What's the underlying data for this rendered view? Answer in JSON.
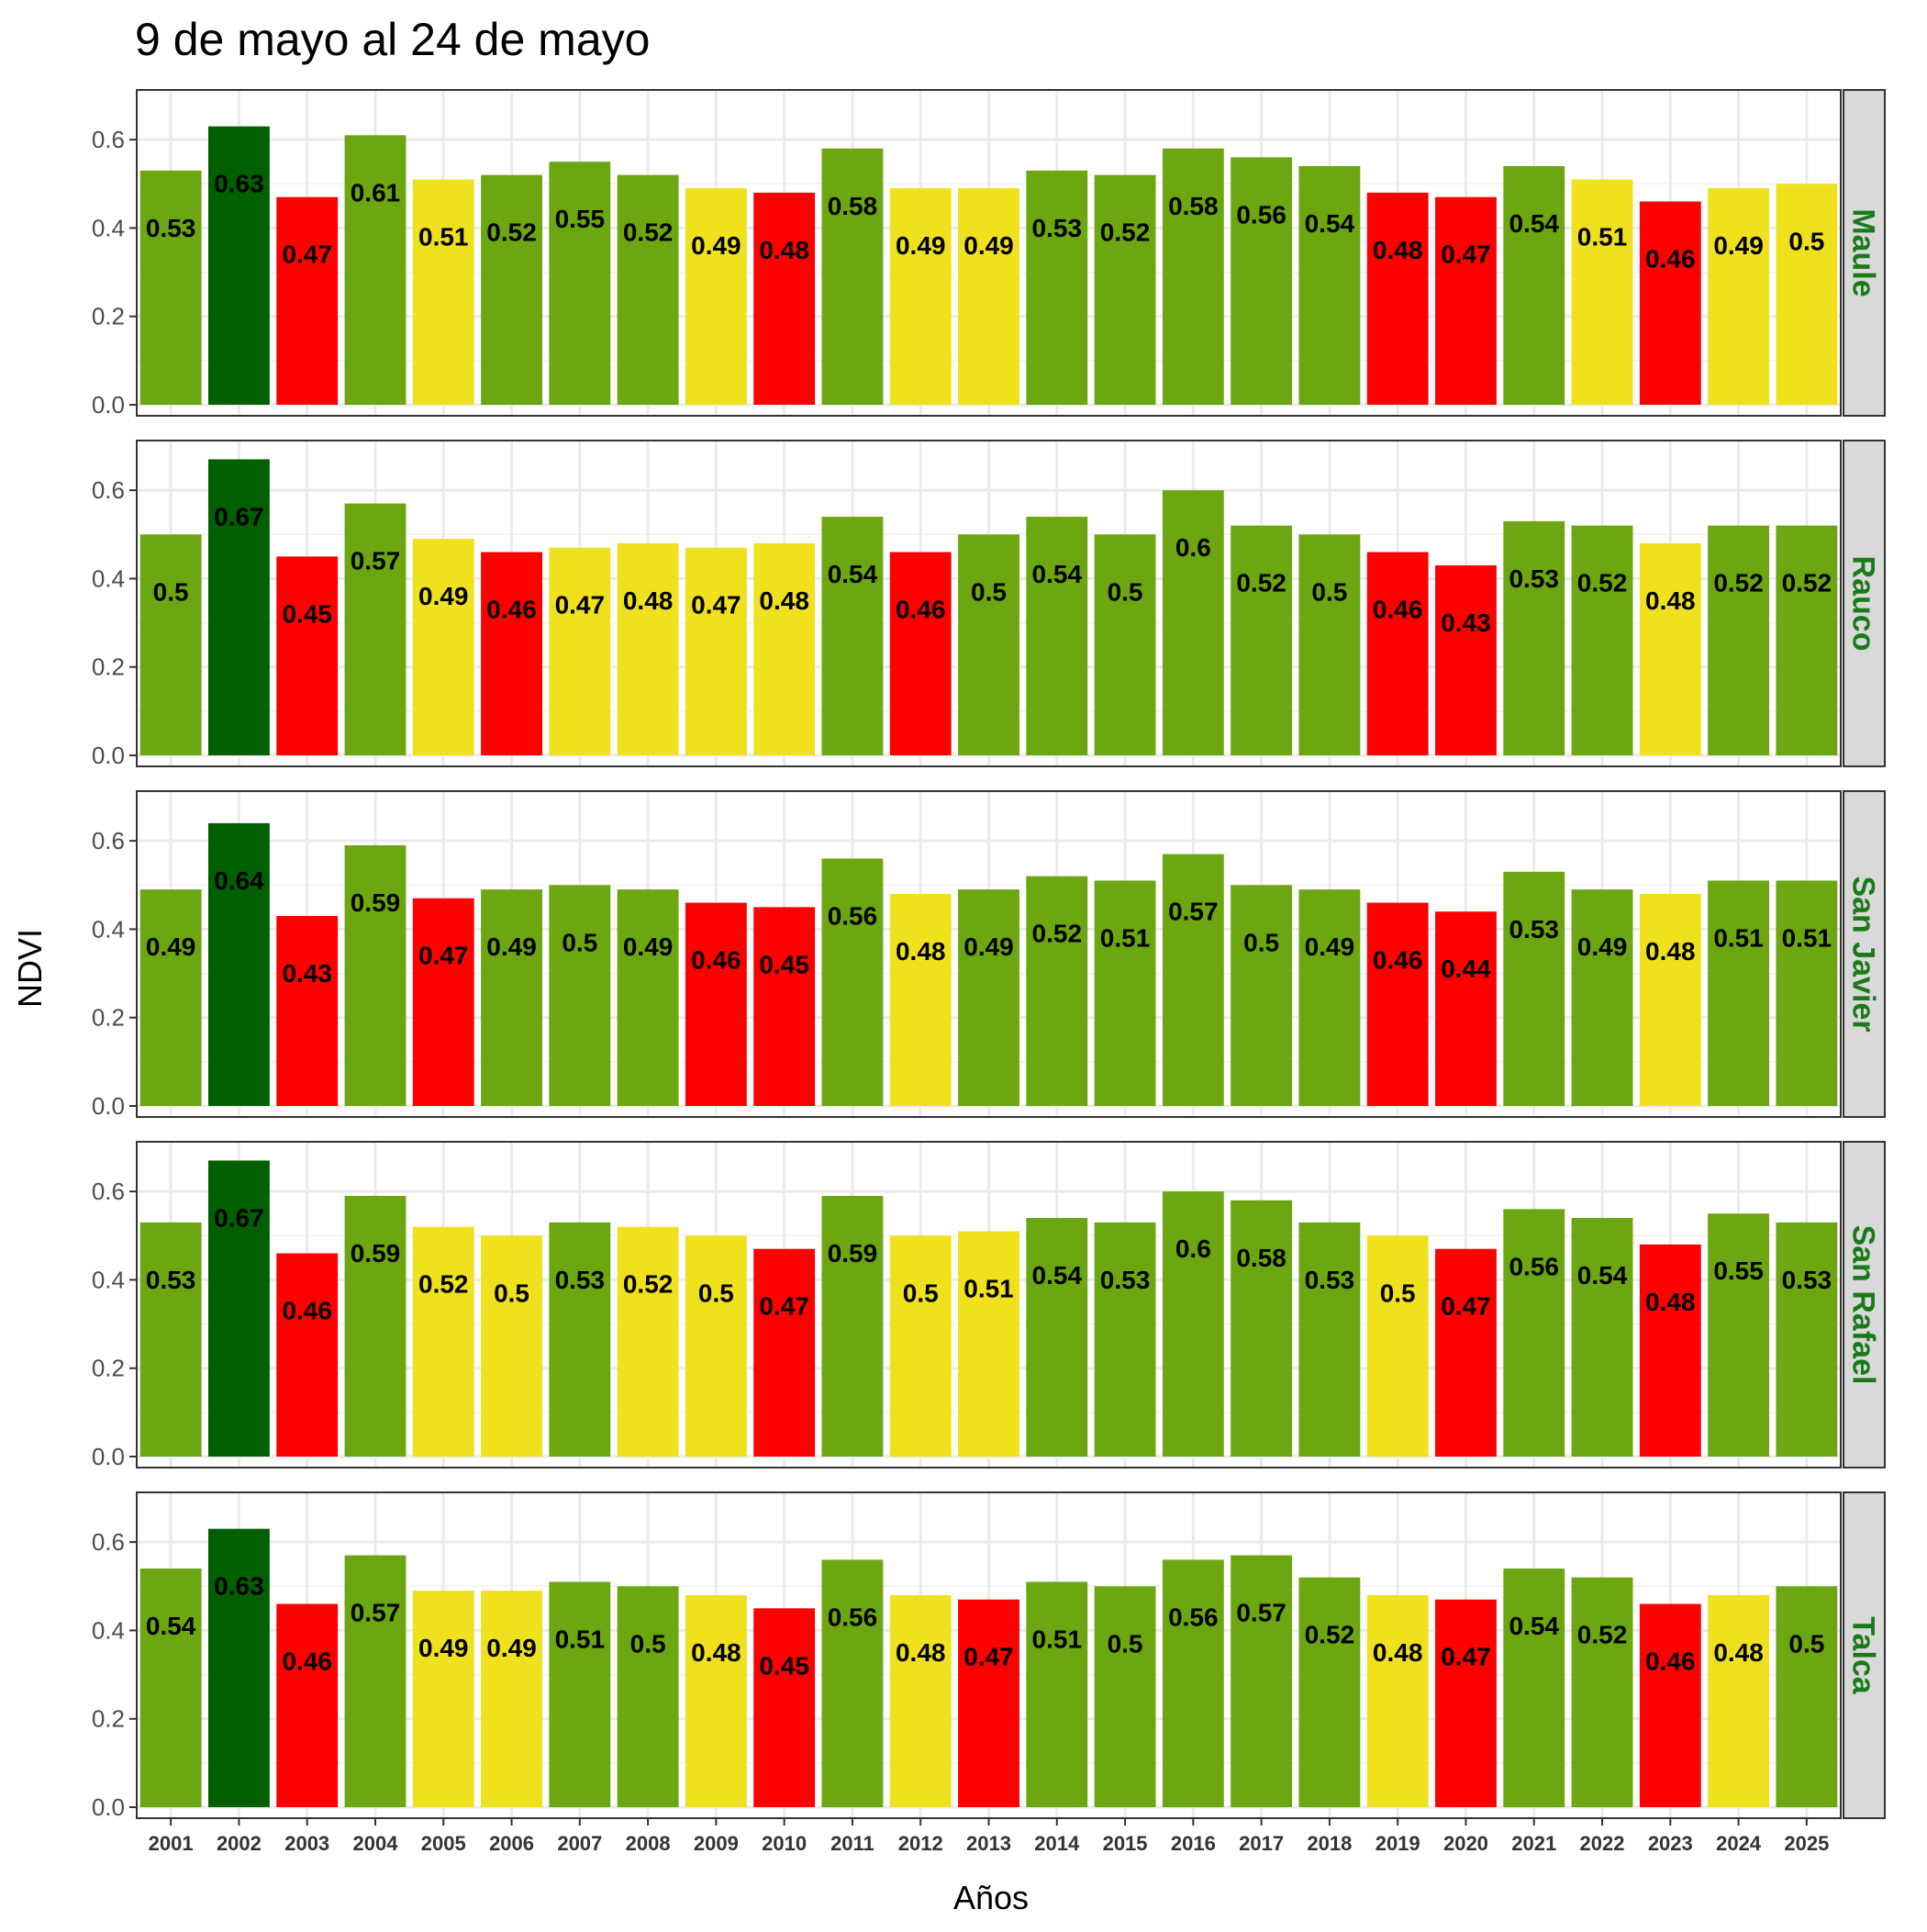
{
  "chart_data": {
    "type": "bar",
    "title": "9 de mayo al 24 de mayo",
    "xlabel": "Años",
    "ylabel": "NDVI",
    "ylim": [
      0,
      0.7
    ],
    "yticks": [
      "0.0",
      "0.2",
      "0.4",
      "0.6"
    ],
    "grid": true,
    "categories": [
      "2001",
      "2002",
      "2003",
      "2004",
      "2005",
      "2006",
      "2007",
      "2008",
      "2009",
      "2010",
      "2011",
      "2012",
      "2013",
      "2014",
      "2015",
      "2016",
      "2017",
      "2018",
      "2019",
      "2020",
      "2021",
      "2022",
      "2023",
      "2024",
      "2025"
    ],
    "colors": {
      "G": "#6ca611",
      "D": "#006000",
      "R": "#ff0000",
      "Y": "#f0e11e"
    },
    "strip_text_color": "#1a7a1a",
    "panels": [
      {
        "name": "Maule",
        "values": [
          0.53,
          0.63,
          0.47,
          0.61,
          0.51,
          0.52,
          0.55,
          0.52,
          0.49,
          0.48,
          0.58,
          0.49,
          0.49,
          0.53,
          0.52,
          0.58,
          0.56,
          0.54,
          0.48,
          0.47,
          0.54,
          0.51,
          0.46,
          0.49,
          0.5
        ],
        "labels": [
          "0.53",
          "0.63",
          "0.47",
          "0.61",
          "0.51",
          "0.52",
          "0.55",
          "0.52",
          "0.49",
          "0.48",
          "0.58",
          "0.49",
          "0.49",
          "0.53",
          "0.52",
          "0.58",
          "0.56",
          "0.54",
          "0.48",
          "0.47",
          "0.54",
          "0.51",
          "0.46",
          "0.49",
          "0.5"
        ],
        "classes": [
          "G",
          "D",
          "R",
          "G",
          "Y",
          "G",
          "G",
          "G",
          "Y",
          "R",
          "G",
          "Y",
          "Y",
          "G",
          "G",
          "G",
          "G",
          "G",
          "R",
          "R",
          "G",
          "Y",
          "R",
          "Y",
          "Y"
        ]
      },
      {
        "name": "Rauco",
        "values": [
          0.5,
          0.67,
          0.45,
          0.57,
          0.49,
          0.46,
          0.47,
          0.48,
          0.47,
          0.48,
          0.54,
          0.46,
          0.5,
          0.54,
          0.5,
          0.6,
          0.52,
          0.5,
          0.46,
          0.43,
          0.53,
          0.52,
          0.48,
          0.52,
          0.52
        ],
        "labels": [
          "0.5",
          "0.67",
          "0.45",
          "0.57",
          "0.49",
          "0.46",
          "0.47",
          "0.48",
          "0.47",
          "0.48",
          "0.54",
          "0.46",
          "0.5",
          "0.54",
          "0.5",
          "0.6",
          "0.52",
          "0.5",
          "0.46",
          "0.43",
          "0.53",
          "0.52",
          "0.48",
          "0.52",
          "0.52"
        ],
        "classes": [
          "G",
          "D",
          "R",
          "G",
          "Y",
          "R",
          "Y",
          "Y",
          "Y",
          "Y",
          "G",
          "R",
          "G",
          "G",
          "G",
          "G",
          "G",
          "G",
          "R",
          "R",
          "G",
          "G",
          "Y",
          "G",
          "G"
        ]
      },
      {
        "name": "San Javier",
        "values": [
          0.49,
          0.64,
          0.43,
          0.59,
          0.47,
          0.49,
          0.5,
          0.49,
          0.46,
          0.45,
          0.56,
          0.48,
          0.49,
          0.52,
          0.51,
          0.57,
          0.5,
          0.49,
          0.46,
          0.44,
          0.53,
          0.49,
          0.48,
          0.51,
          0.51
        ],
        "labels": [
          "0.49",
          "0.64",
          "0.43",
          "0.59",
          "0.47",
          "0.49",
          "0.5",
          "0.49",
          "0.46",
          "0.45",
          "0.56",
          "0.48",
          "0.49",
          "0.52",
          "0.51",
          "0.57",
          "0.5",
          "0.49",
          "0.46",
          "0.44",
          "0.53",
          "0.49",
          "0.48",
          "0.51",
          "0.51"
        ],
        "classes": [
          "G",
          "D",
          "R",
          "G",
          "R",
          "G",
          "G",
          "G",
          "R",
          "R",
          "G",
          "Y",
          "G",
          "G",
          "G",
          "G",
          "G",
          "G",
          "R",
          "R",
          "G",
          "G",
          "Y",
          "G",
          "G"
        ]
      },
      {
        "name": "San Rafael",
        "values": [
          0.53,
          0.67,
          0.46,
          0.59,
          0.52,
          0.5,
          0.53,
          0.52,
          0.5,
          0.47,
          0.59,
          0.5,
          0.51,
          0.54,
          0.53,
          0.6,
          0.58,
          0.53,
          0.5,
          0.47,
          0.56,
          0.54,
          0.48,
          0.55,
          0.53
        ],
        "labels": [
          "0.53",
          "0.67",
          "0.46",
          "0.59",
          "0.52",
          "0.5",
          "0.53",
          "0.52",
          "0.5",
          "0.47",
          "0.59",
          "0.5",
          "0.51",
          "0.54",
          "0.53",
          "0.6",
          "0.58",
          "0.53",
          "0.5",
          "0.47",
          "0.56",
          "0.54",
          "0.48",
          "0.55",
          "0.53"
        ],
        "classes": [
          "G",
          "D",
          "R",
          "G",
          "Y",
          "Y",
          "G",
          "Y",
          "Y",
          "R",
          "G",
          "Y",
          "Y",
          "G",
          "G",
          "G",
          "G",
          "G",
          "Y",
          "R",
          "G",
          "G",
          "R",
          "G",
          "G"
        ]
      },
      {
        "name": "Talca",
        "values": [
          0.54,
          0.63,
          0.46,
          0.57,
          0.49,
          0.49,
          0.51,
          0.5,
          0.48,
          0.45,
          0.56,
          0.48,
          0.47,
          0.51,
          0.5,
          0.56,
          0.57,
          0.52,
          0.48,
          0.47,
          0.54,
          0.52,
          0.46,
          0.48,
          0.5
        ],
        "labels": [
          "0.54",
          "0.63",
          "0.46",
          "0.57",
          "0.49",
          "0.49",
          "0.51",
          "0.5",
          "0.48",
          "0.45",
          "0.56",
          "0.48",
          "0.47",
          "0.51",
          "0.5",
          "0.56",
          "0.57",
          "0.52",
          "0.48",
          "0.47",
          "0.54",
          "0.52",
          "0.46",
          "0.48",
          "0.5"
        ],
        "classes": [
          "G",
          "D",
          "R",
          "G",
          "Y",
          "Y",
          "G",
          "G",
          "Y",
          "R",
          "G",
          "Y",
          "R",
          "G",
          "G",
          "G",
          "G",
          "G",
          "Y",
          "R",
          "G",
          "G",
          "R",
          "Y",
          "G"
        ]
      }
    ]
  }
}
